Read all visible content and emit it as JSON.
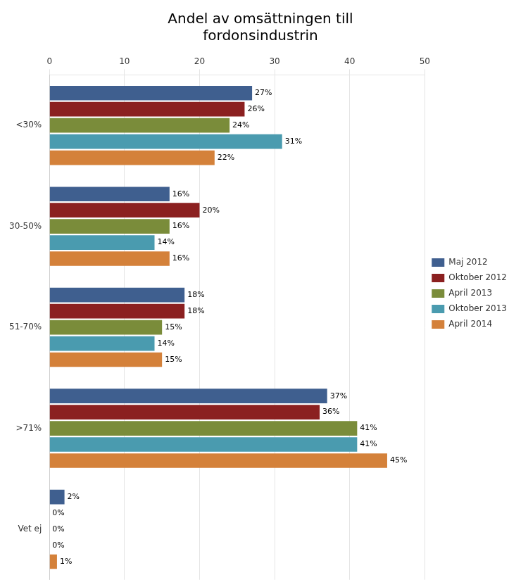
{
  "chart_data": {
    "type": "bar",
    "orientation": "horizontal",
    "title": "Andel av omsättningen till\nfordonsindustrin",
    "categories": [
      "<30%",
      "30-50%",
      "51-70%",
      ">71%",
      "Vet ej"
    ],
    "series": [
      {
        "name": "Maj 2012",
        "color": "#3F5F8F",
        "values": [
          27,
          16,
          18,
          37,
          2
        ],
        "value_labels": [
          "27%",
          "16%",
          "18%",
          "37%",
          "2%"
        ]
      },
      {
        "name": "Oktober 2012",
        "color": "#8B2020",
        "values": [
          26,
          20,
          18,
          36,
          0
        ],
        "value_labels": [
          "26%",
          "20%",
          "18%",
          "36%",
          "0%"
        ]
      },
      {
        "name": "April 2013",
        "color": "#7A8C3A",
        "values": [
          24,
          16,
          15,
          41,
          0
        ],
        "value_labels": [
          "24%",
          "16%",
          "15%",
          "41%",
          "0%"
        ]
      },
      {
        "name": "Oktober 2013",
        "color": "#4A9BAF",
        "values": [
          31,
          14,
          14,
          41,
          0
        ],
        "value_labels": [
          "31%",
          "14%",
          "14%",
          "41%",
          "0%"
        ]
      },
      {
        "name": "April 2014",
        "color": "#D4813A",
        "values": [
          22,
          16,
          15,
          45,
          1
        ],
        "value_labels": [
          "22%",
          "16%",
          "15%",
          "45%",
          "1%"
        ]
      }
    ],
    "xlim": [
      0,
      50
    ],
    "xticks": [
      0,
      10,
      20,
      30,
      40,
      50
    ],
    "grid": true,
    "legend": "right",
    "data_labels": true
  }
}
